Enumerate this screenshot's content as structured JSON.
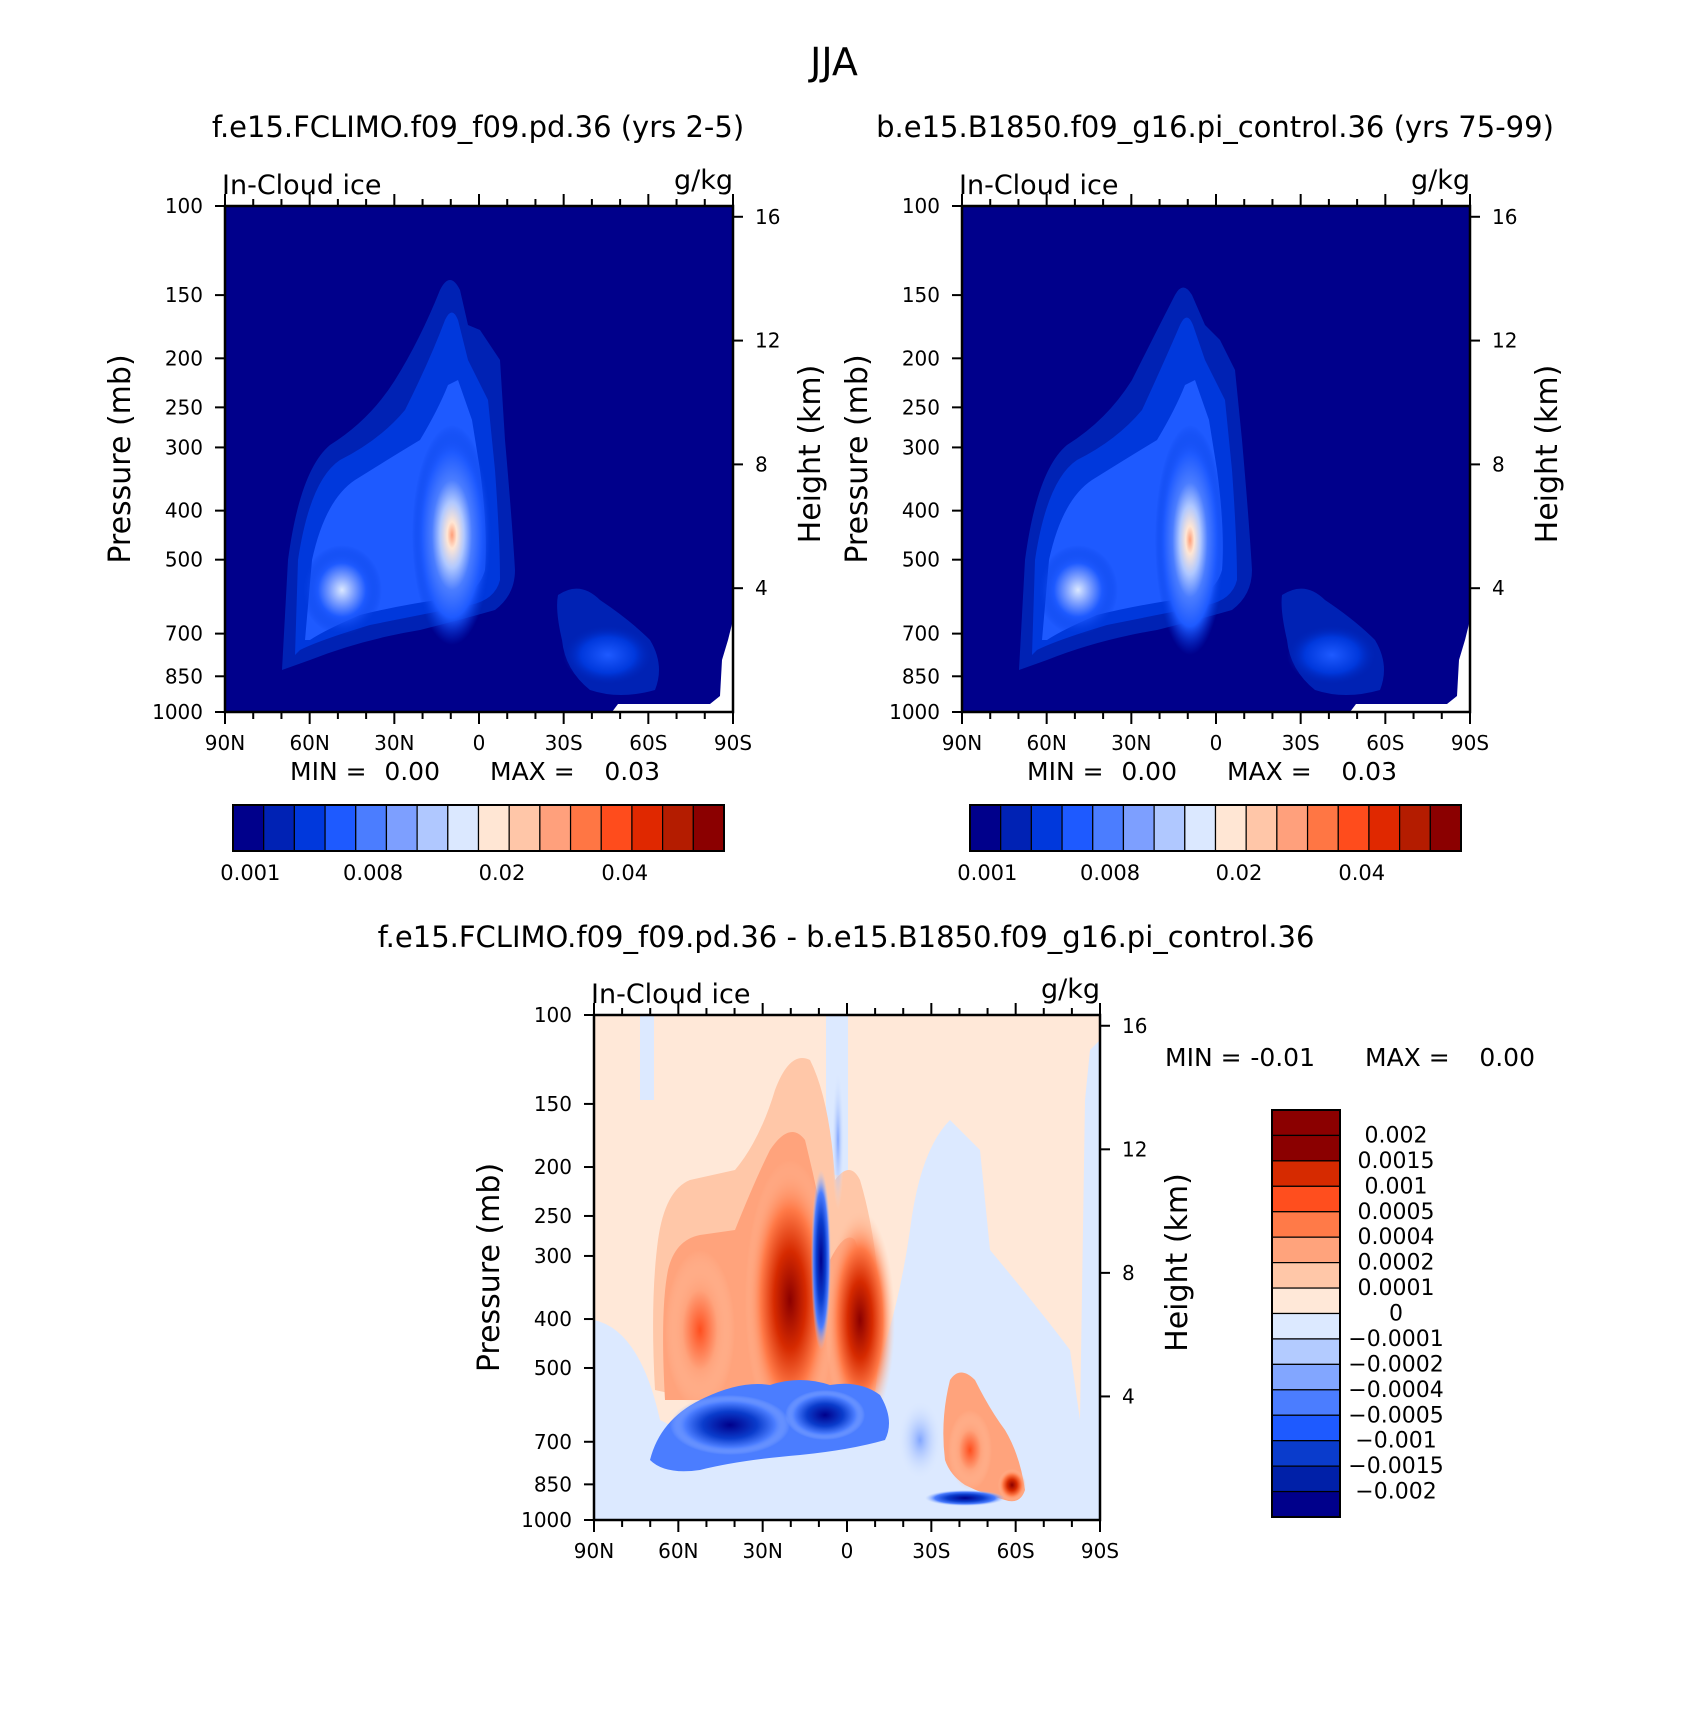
{
  "figure_title": "JJA",
  "colors": {
    "seq": [
      "#00008b",
      "#0022b4",
      "#0038dc",
      "#1e5aff",
      "#4b7dff",
      "#7d9fff",
      "#b0c8ff",
      "#dbe8ff",
      "#ffe6d4",
      "#ffc6a8",
      "#ffa07c",
      "#ff7644",
      "#ff4c1c",
      "#e02800",
      "#b41c00",
      "#8b0000"
    ],
    "diff": [
      "#00008b",
      "#0020a8",
      "#0a3ccc",
      "#1e5aff",
      "#4b7dff",
      "#82a6ff",
      "#b3cbff",
      "#dce9ff",
      "#ffe8d8",
      "#ffc7a8",
      "#ffa37c",
      "#ff7a48",
      "#ff4e1e",
      "#d62a00",
      "#8b0000"
    ]
  },
  "chart_data": [
    {
      "type": "heatmap",
      "title": "f.e15.FCLIMO.f09_f09.pd.36 (yrs 2-5)",
      "left_string": "In-Cloud ice",
      "right_string": "g/kg",
      "ylabel": "Pressure (mb)",
      "ylabel_right": "Height (km)",
      "x_ticks": [
        "90N",
        "60N",
        "30N",
        "0",
        "30S",
        "60S",
        "90S"
      ],
      "x_values": [
        90,
        60,
        30,
        0,
        -30,
        -60,
        -90
      ],
      "y_ticks": [
        100,
        150,
        200,
        250,
        300,
        400,
        500,
        700,
        850,
        1000
      ],
      "y_ticks_right": [
        16,
        12,
        8,
        4
      ],
      "log_y": true,
      "stats": {
        "min_label": "MIN =",
        "min": "0.00",
        "max_label": "MAX =",
        "max": "0.03"
      },
      "colorbar": {
        "orientation": "horizontal",
        "labels": [
          "0.001",
          "0.008",
          "0.02",
          "0.04"
        ]
      },
      "features": [
        {
          "lat": 10,
          "p": 500,
          "value": 0.03
        },
        {
          "lat": 52,
          "p": 560,
          "value": 0.012
        },
        {
          "lat": -50,
          "p": 740,
          "value": 0.003
        }
      ]
    },
    {
      "type": "heatmap",
      "title": "b.e15.B1850.f09_g16.pi_control.36 (yrs 75-99)",
      "left_string": "In-Cloud ice",
      "right_string": "g/kg",
      "ylabel": "Pressure (mb)",
      "ylabel_right": "Height (km)",
      "x_ticks": [
        "90N",
        "60N",
        "30N",
        "0",
        "30S",
        "60S",
        "90S"
      ],
      "x_values": [
        90,
        60,
        30,
        0,
        -30,
        -60,
        -90
      ],
      "y_ticks": [
        100,
        150,
        200,
        250,
        300,
        400,
        500,
        700,
        850,
        1000
      ],
      "y_ticks_right": [
        16,
        12,
        8,
        4
      ],
      "log_y": true,
      "stats": {
        "min_label": "MIN =",
        "min": "0.00",
        "max_label": "MAX =",
        "max": "0.03"
      },
      "colorbar": {
        "orientation": "horizontal",
        "labels": [
          "0.001",
          "0.008",
          "0.02",
          "0.04"
        ]
      },
      "features": [
        {
          "lat": 10,
          "p": 520,
          "value": 0.03
        },
        {
          "lat": 52,
          "p": 560,
          "value": 0.012
        },
        {
          "lat": -50,
          "p": 740,
          "value": 0.003
        }
      ]
    },
    {
      "type": "heatmap",
      "title": "f.e15.FCLIMO.f09_f09.pd.36 - b.e15.B1850.f09_g16.pi_control.36",
      "left_string": "In-Cloud ice",
      "right_string": "g/kg",
      "ylabel": "Pressure (mb)",
      "ylabel_right": "Height (km)",
      "x_ticks": [
        "90N",
        "60N",
        "30N",
        "0",
        "30S",
        "60S",
        "90S"
      ],
      "x_values": [
        90,
        60,
        30,
        0,
        -30,
        -60,
        -90
      ],
      "y_ticks": [
        100,
        150,
        200,
        250,
        300,
        400,
        500,
        700,
        850,
        1000
      ],
      "y_ticks_right": [
        16,
        12,
        8,
        4
      ],
      "log_y": true,
      "stats": {
        "min_label": "MIN =",
        "min": "-0.01",
        "max_label": "MAX =",
        "max": "0.00"
      },
      "colorbar": {
        "orientation": "vertical",
        "labels": [
          "0.002",
          "0.0015",
          "0.001",
          "0.0005",
          "0.0004",
          "0.0002",
          "0.0001",
          "0",
          "-0.0001",
          "-0.0002",
          "-0.0004",
          "-0.0005",
          "-0.001",
          "-0.0015",
          "-0.002"
        ]
      },
      "features": [
        {
          "lat": 20,
          "p": 400,
          "value": 0.002
        },
        {
          "lat": 5,
          "p": 520,
          "value": 0.002
        },
        {
          "lat": 10,
          "p": 400,
          "value": -0.002
        },
        {
          "lat": 45,
          "p": 650,
          "value": -0.002
        },
        {
          "lat": 10,
          "p": 630,
          "value": -0.002
        },
        {
          "lat": -45,
          "p": 720,
          "value": 0.001
        }
      ]
    }
  ]
}
